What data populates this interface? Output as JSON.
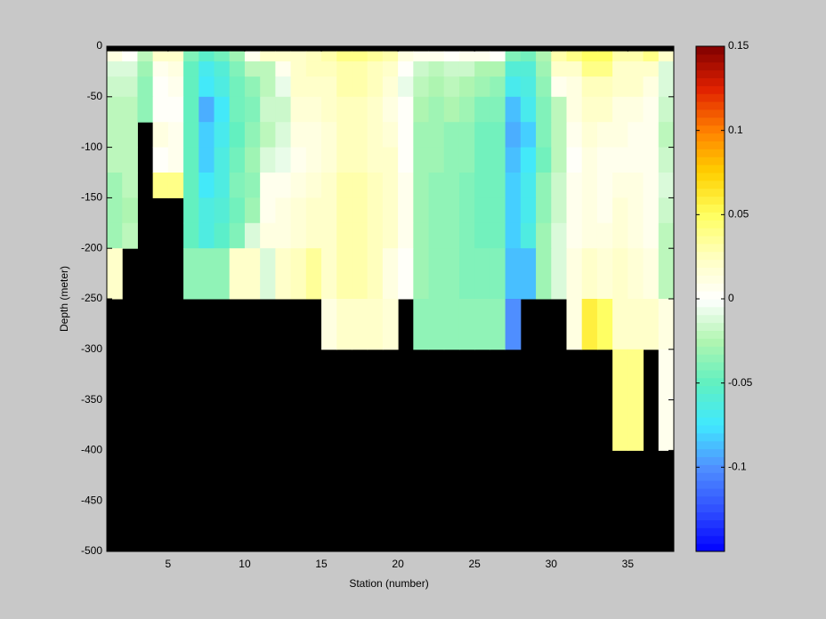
{
  "chart_data": {
    "type": "heatmap",
    "xlabel": "Station (number)",
    "ylabel": "Depth (meter)",
    "x": [
      1,
      2,
      3,
      4,
      5,
      6,
      7,
      8,
      9,
      10,
      11,
      12,
      13,
      14,
      15,
      16,
      17,
      18,
      19,
      20,
      21,
      22,
      23,
      24,
      25,
      26,
      27,
      28,
      29,
      30,
      31,
      32,
      33,
      34,
      35,
      36,
      37,
      38
    ],
    "y": [
      0,
      -5,
      -15,
      -30,
      -50,
      -75,
      -100,
      -125,
      -150,
      -175,
      -200,
      -250,
      -300,
      -400,
      -500
    ],
    "z": [
      [
        null,
        null,
        null,
        null,
        null,
        null,
        null,
        null,
        null,
        null,
        null,
        null,
        null,
        null,
        null,
        null,
        null,
        null,
        null,
        null,
        null,
        null,
        null,
        null,
        null,
        null,
        null,
        null,
        null,
        null,
        null,
        null,
        null,
        null,
        null,
        null,
        null
      ],
      [
        0.01,
        0,
        -0.02,
        0.02,
        0.02,
        -0.04,
        -0.055,
        -0.045,
        -0.03,
        0.005,
        0.02,
        0.02,
        0.02,
        0.025,
        0.03,
        0.04,
        0.04,
        0.035,
        0.03,
        0.01,
        0.005,
        0.005,
        0,
        0.005,
        0.005,
        0,
        -0.04,
        -0.045,
        -0.025,
        0.03,
        0.04,
        0.05,
        0.05,
        0.03,
        0.03,
        0.04,
        0.02
      ],
      [
        -0.01,
        -0.01,
        -0.03,
        0.005,
        0.01,
        -0.05,
        -0.07,
        -0.06,
        -0.04,
        -0.02,
        -0.02,
        0.005,
        0.02,
        0.025,
        0.025,
        0.03,
        0.03,
        0.025,
        0.02,
        0,
        -0.015,
        -0.02,
        -0.015,
        -0.015,
        -0.025,
        -0.025,
        -0.06,
        -0.06,
        -0.03,
        0.02,
        0.02,
        0.04,
        0.04,
        0.02,
        0.02,
        0.02,
        -0.01
      ],
      [
        -0.015,
        -0.015,
        -0.035,
        0,
        0.005,
        -0.05,
        -0.075,
        -0.065,
        -0.045,
        -0.035,
        -0.02,
        -0.005,
        0.02,
        0.02,
        0.02,
        0.03,
        0.03,
        0.025,
        0.015,
        -0.005,
        -0.02,
        -0.025,
        -0.02,
        -0.025,
        -0.03,
        -0.035,
        -0.07,
        -0.065,
        -0.035,
        0.005,
        0.01,
        0.025,
        0.025,
        0.02,
        0.02,
        0.01,
        -0.01
      ],
      [
        -0.02,
        -0.02,
        -0.035,
        0,
        0,
        -0.05,
        -0.09,
        -0.075,
        -0.045,
        -0.04,
        -0.015,
        -0.015,
        0.015,
        0.015,
        0.02,
        0.025,
        0.025,
        0.02,
        0.01,
        0,
        -0.025,
        -0.03,
        -0.025,
        -0.03,
        -0.04,
        -0.04,
        -0.085,
        -0.07,
        -0.04,
        -0.02,
        0.01,
        0.02,
        0.02,
        0.01,
        0.01,
        0.005,
        -0.015
      ],
      [
        -0.02,
        -0.02,
        null,
        0.01,
        0.005,
        -0.05,
        -0.08,
        -0.07,
        -0.05,
        -0.035,
        -0.02,
        -0.01,
        0.01,
        0.01,
        0.015,
        0.025,
        0.025,
        0.02,
        0.015,
        0,
        -0.03,
        -0.03,
        -0.035,
        -0.035,
        -0.045,
        -0.045,
        -0.09,
        -0.08,
        -0.04,
        -0.02,
        0.005,
        0.015,
        0.01,
        0.01,
        0.005,
        0.005,
        -0.02
      ],
      [
        -0.02,
        -0.02,
        null,
        0,
        0.005,
        -0.05,
        -0.08,
        -0.065,
        -0.045,
        -0.03,
        -0.01,
        -0.005,
        0.005,
        0.01,
        0.015,
        0.025,
        0.025,
        0.02,
        0.02,
        0,
        -0.03,
        -0.03,
        -0.035,
        -0.035,
        -0.045,
        -0.045,
        -0.085,
        -0.075,
        -0.045,
        -0.02,
        0,
        0.01,
        0.005,
        0.005,
        0.005,
        0.005,
        -0.015
      ],
      [
        -0.03,
        -0.02,
        null,
        0.04,
        0.04,
        -0.05,
        -0.075,
        -0.065,
        -0.04,
        -0.035,
        0.005,
        0.005,
        0.01,
        0.015,
        0.02,
        0.03,
        0.03,
        0.025,
        0.02,
        0.005,
        -0.03,
        -0.035,
        -0.035,
        -0.04,
        -0.045,
        -0.045,
        -0.08,
        -0.07,
        -0.035,
        -0.015,
        0.005,
        0.01,
        0.005,
        0.01,
        0.01,
        0.005,
        -0.01
      ],
      [
        -0.03,
        -0.025,
        null,
        null,
        null,
        -0.05,
        -0.065,
        -0.06,
        -0.045,
        -0.03,
        0.005,
        0.01,
        0.015,
        0.02,
        0.02,
        0.03,
        0.03,
        0.025,
        0.02,
        0.005,
        -0.03,
        -0.035,
        -0.035,
        -0.04,
        -0.045,
        -0.045,
        -0.08,
        -0.07,
        -0.035,
        -0.015,
        0.005,
        0.01,
        0.005,
        0.015,
        0.01,
        0.005,
        -0.015
      ],
      [
        -0.03,
        -0.02,
        null,
        null,
        null,
        -0.05,
        -0.065,
        -0.055,
        -0.04,
        -0.01,
        0.01,
        0.01,
        0.015,
        0.02,
        0.02,
        0.03,
        0.03,
        0.025,
        0.02,
        0.005,
        -0.03,
        -0.035,
        -0.035,
        -0.04,
        -0.045,
        -0.045,
        -0.08,
        -0.065,
        -0.03,
        -0.01,
        0.005,
        0.01,
        0.01,
        0.015,
        0.01,
        0.005,
        -0.02
      ],
      [
        0.02,
        null,
        null,
        null,
        null,
        -0.035,
        -0.035,
        -0.035,
        0.02,
        0.02,
        -0.01,
        0.02,
        0.025,
        0.035,
        0.02,
        0.03,
        0.03,
        0.025,
        0.01,
        0,
        -0.03,
        -0.035,
        -0.035,
        -0.04,
        -0.04,
        -0.04,
        -0.085,
        -0.085,
        -0.03,
        -0.01,
        0.01,
        0.02,
        0.015,
        0.02,
        0.015,
        0.01,
        -0.02
      ],
      [
        null,
        null,
        null,
        null,
        null,
        null,
        null,
        null,
        null,
        null,
        null,
        null,
        null,
        null,
        0.01,
        0.02,
        0.02,
        0.02,
        0.015,
        null,
        -0.035,
        -0.035,
        -0.035,
        -0.035,
        -0.035,
        -0.035,
        -0.1,
        null,
        null,
        null,
        0.01,
        0.06,
        0.05,
        0.02,
        0.02,
        0.02,
        0.01
      ],
      [
        null,
        null,
        null,
        null,
        null,
        null,
        null,
        null,
        null,
        null,
        null,
        null,
        null,
        null,
        null,
        null,
        null,
        null,
        null,
        null,
        null,
        null,
        null,
        null,
        null,
        null,
        null,
        null,
        null,
        null,
        null,
        null,
        null,
        0.04,
        0.04,
        null,
        0.005
      ],
      [
        null,
        null,
        null,
        null,
        null,
        null,
        null,
        null,
        null,
        null,
        null,
        null,
        null,
        null,
        null,
        null,
        null,
        null,
        null,
        null,
        null,
        null,
        null,
        null,
        null,
        null,
        null,
        null,
        null,
        null,
        null,
        null,
        null,
        null,
        null,
        null,
        null
      ]
    ],
    "xlim": [
      1,
      38
    ],
    "ylim": [
      -500,
      0
    ],
    "xticks": [
      5,
      10,
      15,
      20,
      25,
      30,
      35
    ],
    "yticks": [
      -500,
      -450,
      -400,
      -350,
      -300,
      -250,
      -200,
      -150,
      -100,
      -50,
      0
    ],
    "clim": [
      -0.15,
      0.15
    ],
    "cticks": [
      -0.1,
      -0.05,
      0,
      0.05,
      0.1,
      0.15
    ],
    "colormap": [
      "#0000ff",
      "#3050ff",
      "#5090ff",
      "#40e8ff",
      "#60f0c0",
      "#b0f5b0",
      "#ffffff",
      "#ffffc0",
      "#ffff60",
      "#ffd000",
      "#ff8000",
      "#e02000",
      "#800000"
    ],
    "colormap_levels": 64,
    "nan_color": "#000000"
  }
}
